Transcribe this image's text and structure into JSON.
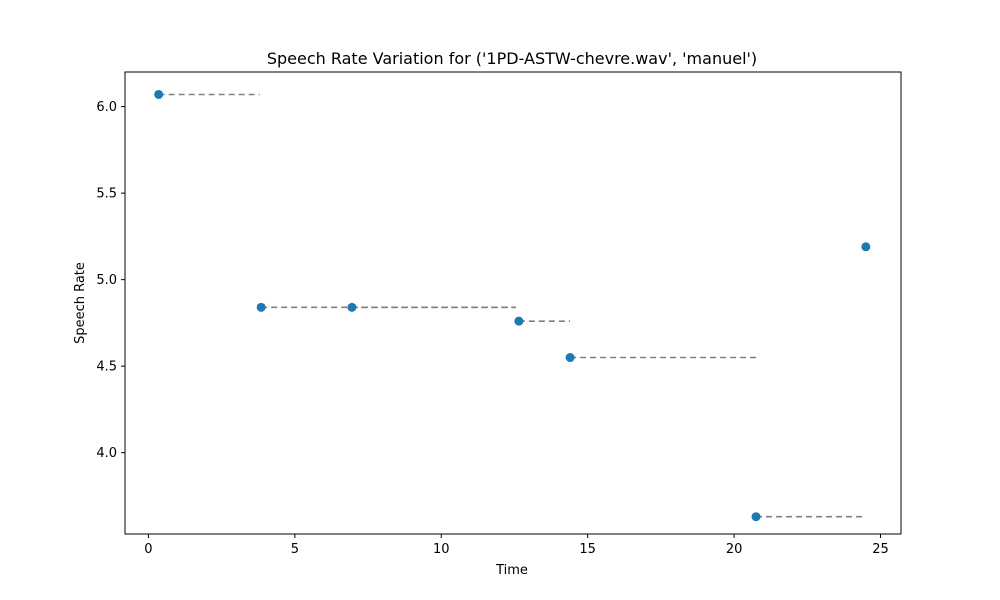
{
  "chart_data": {
    "type": "scatter",
    "title": "Speech Rate Variation for ('1PD-ASTW-chevre.wav', 'manuel')",
    "xlabel": "Time",
    "ylabel": "Speech Rate",
    "xlim": [
      -0.8,
      25.7
    ],
    "ylim": [
      3.53,
      6.2
    ],
    "xticks": [
      0,
      5,
      10,
      15,
      20,
      25
    ],
    "yticks": [
      4.0,
      4.5,
      5.0,
      5.5,
      6.0
    ],
    "xtick_labels": [
      "0",
      "5",
      "10",
      "15",
      "20",
      "25"
    ],
    "ytick_labels": [
      "4.0",
      "4.5",
      "5.0",
      "5.5",
      "6.0"
    ],
    "grid": false,
    "point_color": "#1f77b4",
    "segment_color": "#808080",
    "points": [
      {
        "x": 0.35,
        "y": 6.07,
        "x_end": 3.8
      },
      {
        "x": 3.85,
        "y": 4.84,
        "x_end": 12.55
      },
      {
        "x": 6.95,
        "y": 4.84,
        "x_end": 12.55
      },
      {
        "x": 12.65,
        "y": 4.76,
        "x_end": 14.4
      },
      {
        "x": 14.4,
        "y": 4.55,
        "x_end": 20.75
      },
      {
        "x": 20.75,
        "y": 3.63,
        "x_end": 24.45
      },
      {
        "x": 24.5,
        "y": 5.19,
        "x_end": null
      }
    ]
  }
}
